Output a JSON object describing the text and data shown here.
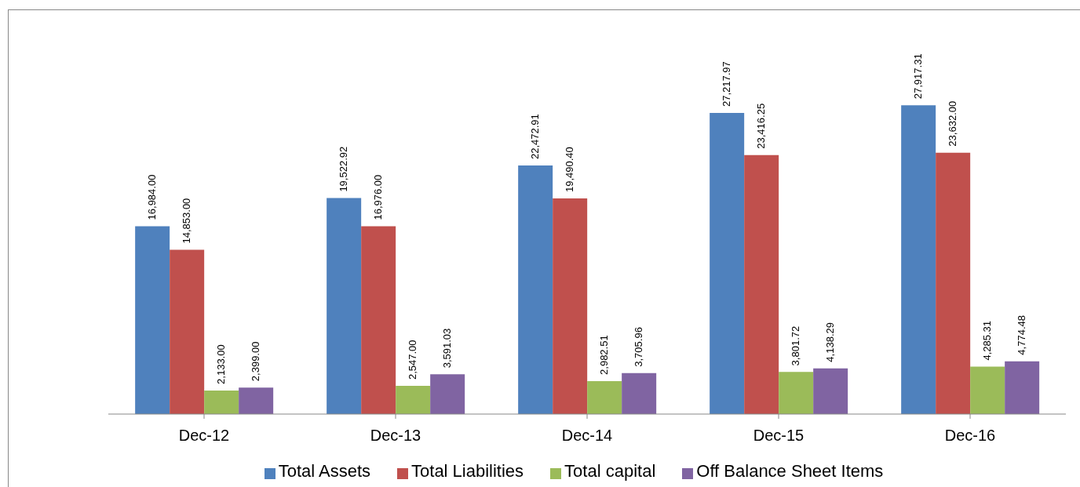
{
  "chart_data": {
    "type": "bar",
    "categories": [
      "Dec-12",
      "Dec-13",
      "Dec-14",
      "Dec-15",
      "Dec-16"
    ],
    "series": [
      {
        "name": "Total Assets",
        "color": "#4f81bd",
        "values": [
          16984.0,
          19522.92,
          22472.91,
          27217.97,
          27917.31
        ],
        "value_labels": [
          "16,984.00",
          "19,522.92",
          "22,472.91",
          "27,217.97",
          "27,917.31"
        ]
      },
      {
        "name": "Total Liabilities",
        "color": "#c0504d",
        "values": [
          14853.0,
          16976.0,
          19490.4,
          23416.25,
          23632.0
        ],
        "value_labels": [
          "14,853.00",
          "16,976.00",
          "19,490.40",
          "23,416.25",
          "23,632.00"
        ]
      },
      {
        "name": "Total capital",
        "color": "#9bbb59",
        "values": [
          2133.0,
          2547.0,
          2982.51,
          3801.72,
          4285.31
        ],
        "value_labels": [
          "2,133.00",
          "2,547.00",
          "2,982.51",
          "3,801.72",
          "4,285.31"
        ]
      },
      {
        "name": "Off Balance Sheet Items",
        "color": "#8064a2",
        "values": [
          2399.0,
          3591.03,
          3705.96,
          4138.29,
          4774.48
        ],
        "value_labels": [
          "2,399.00",
          "3,591.03",
          "3,705.96",
          "4,138.29",
          "4,774.48"
        ]
      }
    ],
    "grid": false,
    "legend": "bottom"
  }
}
